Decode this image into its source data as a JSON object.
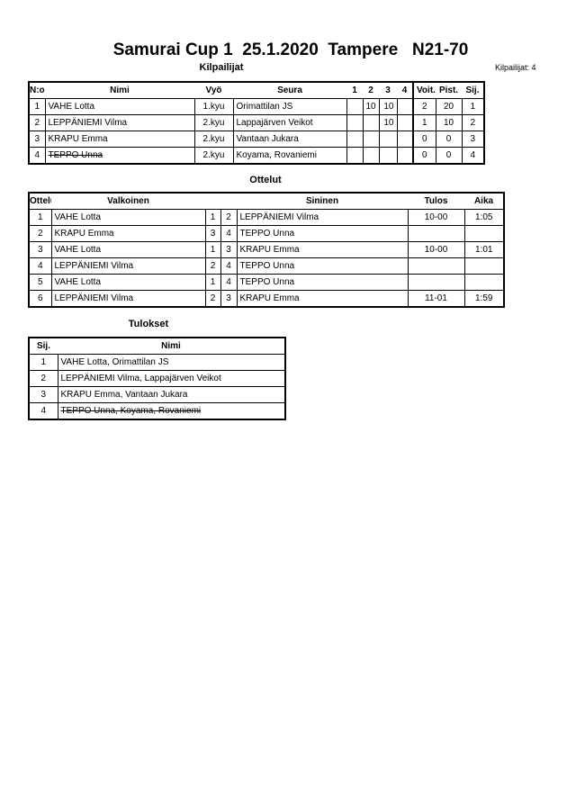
{
  "title": "Samurai Cup 1  25.1.2020  Tampere   N21-70",
  "competitors": {
    "heading": "Kilpailijat",
    "count_label": "Kilpailijat: 4",
    "columns": [
      "N:o",
      "Nimi",
      "Vyö",
      "Seura",
      "1",
      "2",
      "3",
      "4",
      "Voit.",
      "Pist.",
      "Sij."
    ],
    "rows": [
      {
        "no": "1",
        "name": "VAHE Lotta",
        "belt": "1.kyu",
        "club": "Orimattilan JS",
        "m1": "",
        "m2": "10",
        "m3": "10",
        "m4": "",
        "wins": "2",
        "points": "20",
        "rank": "1",
        "withdrawn": false
      },
      {
        "no": "2",
        "name": "LEPPÄNIEMI Vilma",
        "belt": "2.kyu",
        "club": "Lappajärven Veikot",
        "m1": "",
        "m2": "",
        "m3": "10",
        "m4": "",
        "wins": "1",
        "points": "10",
        "rank": "2",
        "withdrawn": false
      },
      {
        "no": "3",
        "name": "KRAPU Emma",
        "belt": "2.kyu",
        "club": "Vantaan Jukara",
        "m1": "",
        "m2": "",
        "m3": "",
        "m4": "",
        "wins": "0",
        "points": "0",
        "rank": "3",
        "withdrawn": false
      },
      {
        "no": "4",
        "name": "TEPPO Unna",
        "belt": "2.kyu",
        "club": "Koyama, Rovaniemi",
        "m1": "",
        "m2": "",
        "m3": "",
        "m4": "",
        "wins": "0",
        "points": "0",
        "rank": "4",
        "withdrawn": true
      }
    ]
  },
  "matches": {
    "heading": "Ottelut",
    "columns": [
      "Ottelu",
      "Valkoinen",
      "Sininen",
      "Tulos",
      "Aika"
    ],
    "rows": [
      {
        "no": "1",
        "white": "VAHE Lotta",
        "wn": "1",
        "bn": "2",
        "blue": "LEPPÄNIEMI Vilma",
        "result": "10-00",
        "time": "1:05"
      },
      {
        "no": "2",
        "white": "KRAPU Emma",
        "wn": "3",
        "bn": "4",
        "blue": "TEPPO Unna",
        "result": "",
        "time": ""
      },
      {
        "no": "3",
        "white": "VAHE Lotta",
        "wn": "1",
        "bn": "3",
        "blue": "KRAPU Emma",
        "result": "10-00",
        "time": "1:01"
      },
      {
        "no": "4",
        "white": "LEPPÄNIEMI Vilma",
        "wn": "2",
        "bn": "4",
        "blue": "TEPPO Unna",
        "result": "",
        "time": ""
      },
      {
        "no": "5",
        "white": "VAHE Lotta",
        "wn": "1",
        "bn": "4",
        "blue": "TEPPO Unna",
        "result": "",
        "time": ""
      },
      {
        "no": "6",
        "white": "LEPPÄNIEMI Vilma",
        "wn": "2",
        "bn": "3",
        "blue": "KRAPU Emma",
        "result": "11-01",
        "time": "1:59"
      }
    ]
  },
  "results": {
    "heading": "Tulokset",
    "columns": [
      "Sij.",
      "Nimi"
    ],
    "rows": [
      {
        "rank": "1",
        "name": "VAHE Lotta, Orimattilan JS",
        "withdrawn": false
      },
      {
        "rank": "2",
        "name": "LEPPÄNIEMI Vilma, Lappajärven Veikot",
        "withdrawn": false
      },
      {
        "rank": "3",
        "name": "KRAPU Emma, Vantaan Jukara",
        "withdrawn": false
      },
      {
        "rank": "4",
        "name": "TEPPO Unna, Koyama, Rovaniemi",
        "withdrawn": true
      }
    ]
  }
}
